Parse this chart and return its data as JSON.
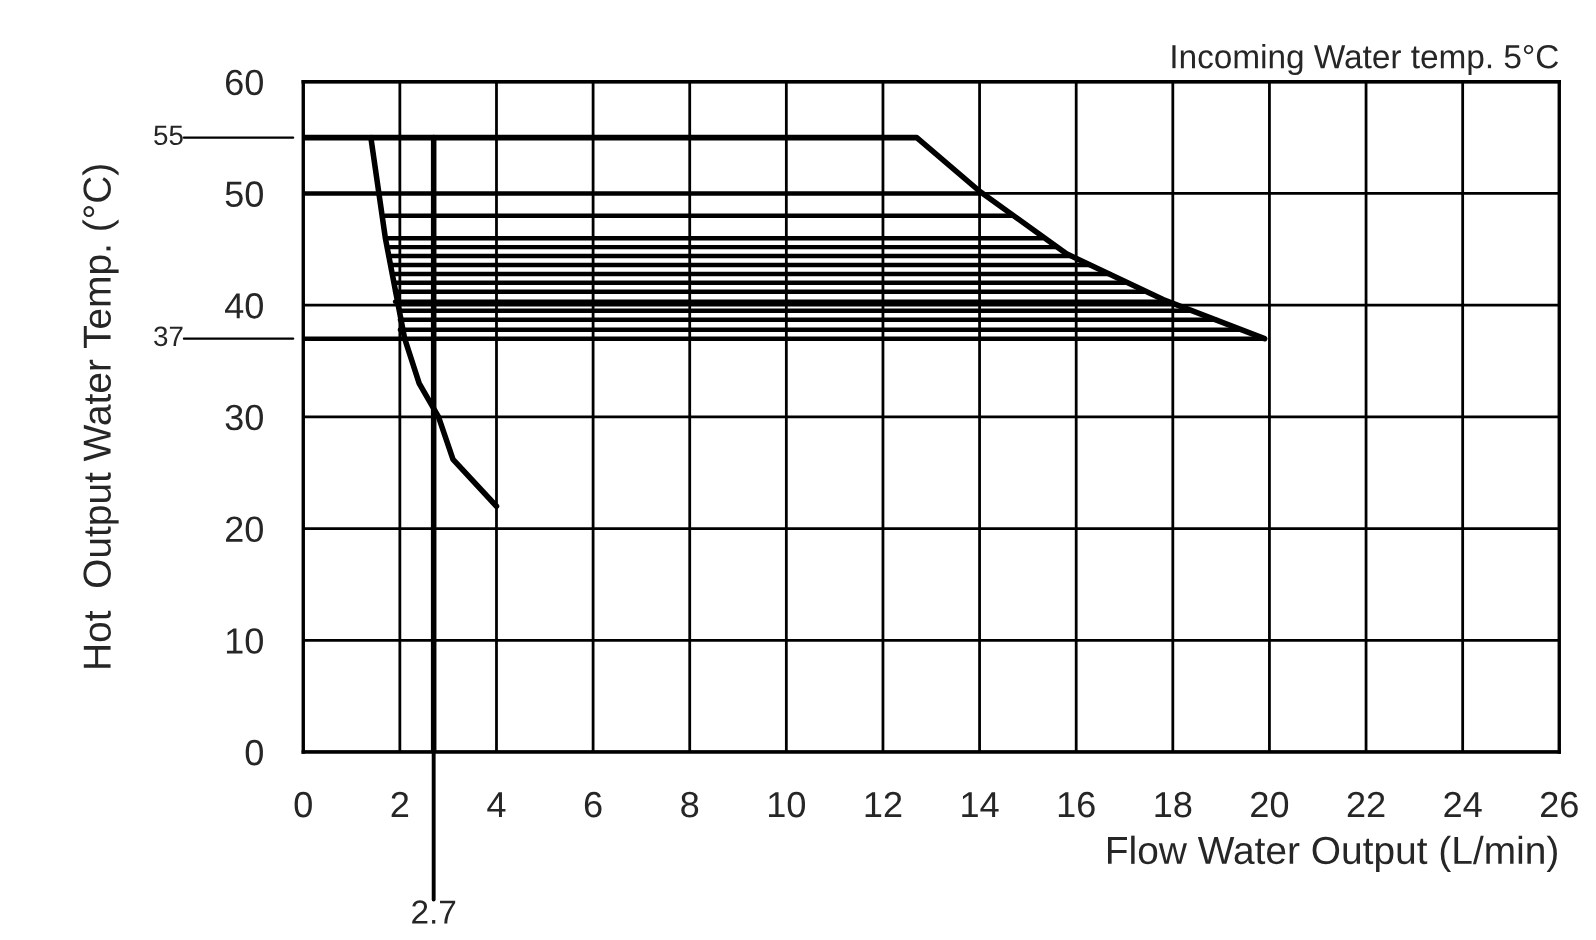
{
  "chart_data": {
    "type": "line",
    "xlabel": "Flow Water Output (L/min)",
    "ylabel": "Hot  Output Water Temp. (°C)",
    "annotations": [
      "Incoming Water temp. 5°C"
    ],
    "xlim": [
      0,
      26
    ],
    "ylim": [
      0,
      60
    ],
    "xticks": [
      0,
      2,
      4,
      6,
      8,
      10,
      12,
      14,
      16,
      18,
      20,
      22,
      24,
      26
    ],
    "yticks": [
      0,
      10,
      20,
      30,
      40,
      50,
      60
    ],
    "grid": true,
    "marker": "none",
    "line_style": "solid",
    "ref_lines": [
      {
        "axis": "y",
        "value": 55,
        "label": "55",
        "color": "#000000"
      },
      {
        "axis": "y",
        "value": 37,
        "label": "37",
        "color": "#000000"
      },
      {
        "axis": "x",
        "value": 2.7,
        "label": "2.7",
        "color": "#000000"
      }
    ],
    "series": [
      {
        "color": "#000000",
        "x": [
          0,
          12.7,
          14.0,
          15.8,
          17.8,
          19.9
        ],
        "values": [
          55,
          55,
          50.2,
          44.6,
          40.5,
          37
        ]
      },
      {
        "color": "#000000",
        "x": [
          1.4,
          1.7,
          2.1,
          2.4,
          2.8,
          3.1,
          4.0
        ],
        "values": [
          55,
          46,
          37,
          33,
          30,
          26.2,
          22
        ]
      },
      {
        "color": "#000000",
        "x": [
          2.7,
          2.7
        ],
        "values": [
          0,
          55
        ]
      },
      {
        "color": "#000000",
        "x": [
          0,
          19.9
        ],
        "values": [
          37,
          37
        ]
      },
      {
        "color": "#000000",
        "x": [
          0,
          14.0
        ],
        "values": [
          50,
          50
        ]
      },
      {
        "color": "#000000",
        "x": [
          1.7,
          14.7
        ],
        "values": [
          48,
          48
        ]
      },
      {
        "color": "#000000",
        "x": [
          1.7,
          15.3
        ],
        "values": [
          46,
          46
        ]
      },
      {
        "color": "#000000",
        "x": [
          1.8,
          15.6
        ],
        "values": [
          45.2,
          45.2
        ]
      },
      {
        "color": "#000000",
        "x": [
          1.8,
          15.9
        ],
        "values": [
          44.4,
          44.4
        ]
      },
      {
        "color": "#000000",
        "x": [
          1.8,
          16.3
        ],
        "values": [
          43.6,
          43.6
        ]
      },
      {
        "color": "#000000",
        "x": [
          1.9,
          16.7
        ],
        "values": [
          42.8,
          42.8
        ]
      },
      {
        "color": "#000000",
        "x": [
          1.9,
          17.0
        ],
        "values": [
          42,
          42
        ]
      },
      {
        "color": "#000000",
        "x": [
          1.9,
          17.4
        ],
        "values": [
          41.2,
          41.2
        ]
      },
      {
        "color": "#000000",
        "x": [
          1.9,
          17.9
        ],
        "values": [
          40.3,
          40.3
        ]
      },
      {
        "color": "#000000",
        "x": [
          2.0,
          18.4
        ],
        "values": [
          39.5,
          39.5
        ]
      },
      {
        "color": "#000000",
        "x": [
          2.0,
          18.9
        ],
        "values": [
          38.7,
          38.7
        ]
      },
      {
        "color": "#000000",
        "x": [
          2.0,
          19.4
        ],
        "values": [
          37.8,
          37.8
        ]
      }
    ]
  }
}
